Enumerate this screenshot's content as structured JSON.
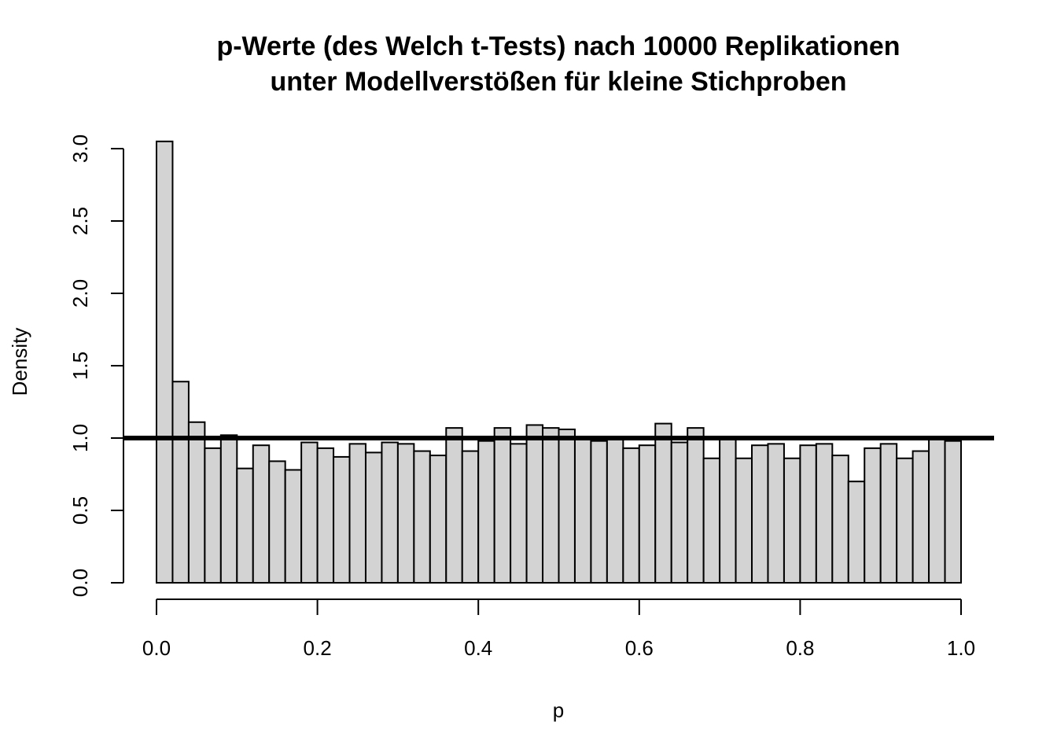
{
  "chart_data": {
    "type": "bar",
    "subtype": "histogram",
    "title": [
      "p-Werte (des Welch t-Tests) nach 10000 Replikationen",
      "unter Modellverstößen für kleine Stichproben"
    ],
    "xlabel": "p",
    "ylabel": "Density",
    "xlim": [
      0,
      1
    ],
    "ylim": [
      0,
      3
    ],
    "x_ticks": [
      "0.0",
      "0.2",
      "0.4",
      "0.6",
      "0.8",
      "1.0"
    ],
    "y_ticks": [
      "0.0",
      "0.5",
      "1.0",
      "1.5",
      "2.0",
      "2.5",
      "3.0"
    ],
    "bin_width": 0.02,
    "bin_start": 0,
    "values": [
      3.05,
      1.39,
      1.11,
      0.93,
      1.02,
      0.79,
      0.95,
      0.84,
      0.78,
      0.97,
      0.93,
      0.87,
      0.96,
      0.9,
      0.97,
      0.96,
      0.91,
      0.88,
      1.07,
      0.91,
      0.98,
      1.07,
      0.96,
      1.09,
      1.07,
      1.06,
      1.0,
      0.98,
      0.99,
      0.93,
      0.95,
      1.1,
      0.97,
      1.07,
      0.86,
      0.99,
      0.86,
      0.95,
      0.96,
      0.86,
      0.95,
      0.96,
      0.88,
      0.7,
      0.93,
      0.96,
      0.86,
      0.91,
      0.99,
      0.98
    ],
    "bar_color": "#d3d3d3",
    "edge_color": "#000000",
    "reference_line": {
      "y": 1.0,
      "color": "#000000"
    },
    "grid": false,
    "legend": "none"
  }
}
